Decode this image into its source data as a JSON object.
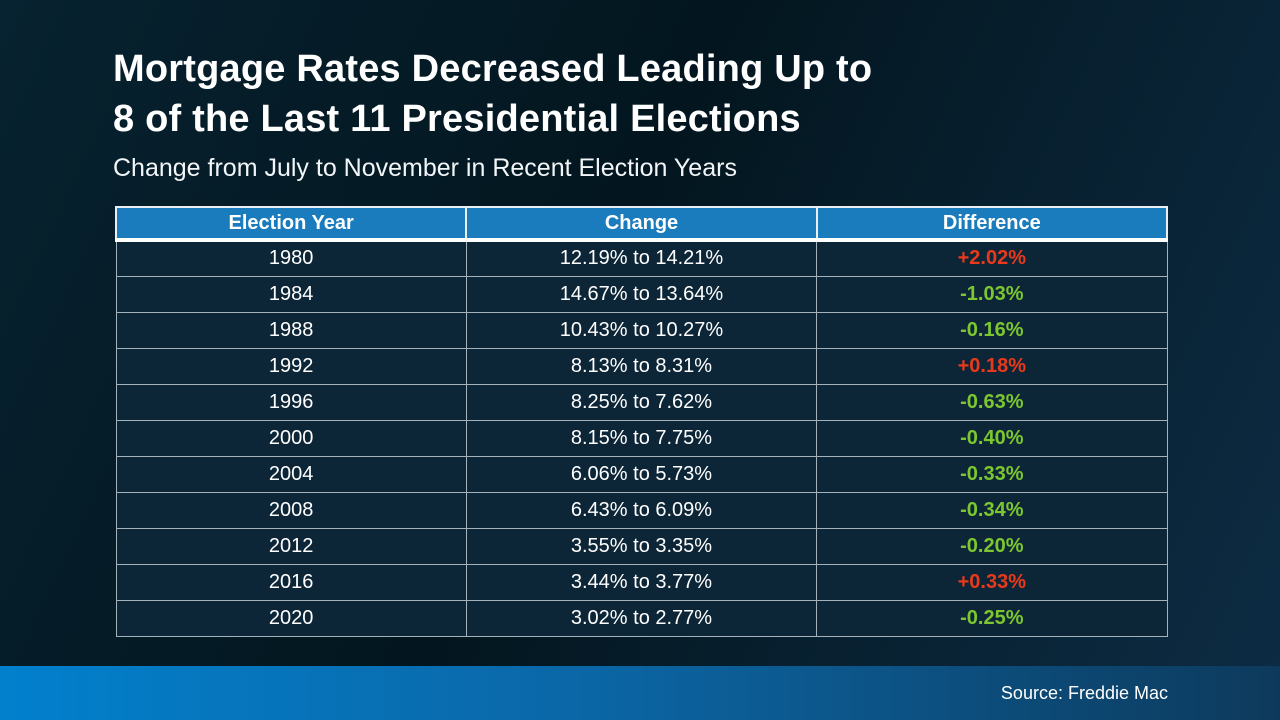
{
  "header": {
    "title_line1": "Mortgage Rates Decreased Leading Up to",
    "title_line2": "8 of the Last 11 Presidential Elections",
    "subtitle": "Change from July to November in Recent Election Years"
  },
  "table": {
    "columns": [
      "Election Year",
      "Change",
      "Difference"
    ],
    "rows": [
      {
        "year": "1980",
        "change": "12.19% to 14.21%",
        "difference": "+2.02%",
        "trend": "increase"
      },
      {
        "year": "1984",
        "change": "14.67% to 13.64%",
        "difference": "-1.03%",
        "trend": "decrease"
      },
      {
        "year": "1988",
        "change": "10.43% to 10.27%",
        "difference": "-0.16%",
        "trend": "decrease"
      },
      {
        "year": "1992",
        "change": "8.13% to 8.31%",
        "difference": "+0.18%",
        "trend": "increase"
      },
      {
        "year": "1996",
        "change": "8.25% to 7.62%",
        "difference": "-0.63%",
        "trend": "decrease"
      },
      {
        "year": "2000",
        "change": "8.15% to 7.75%",
        "difference": "-0.40%",
        "trend": "decrease"
      },
      {
        "year": "2004",
        "change": "6.06% to 5.73%",
        "difference": "-0.33%",
        "trend": "decrease"
      },
      {
        "year": "2008",
        "change": "6.43% to 6.09%",
        "difference": "-0.34%",
        "trend": "decrease"
      },
      {
        "year": "2012",
        "change": "3.55% to 3.35%",
        "difference": "-0.20%",
        "trend": "decrease"
      },
      {
        "year": "2016",
        "change": "3.44% to 3.77%",
        "difference": "+0.33%",
        "trend": "increase"
      },
      {
        "year": "2020",
        "change": "3.02% to 2.77%",
        "difference": "-0.25%",
        "trend": "decrease"
      }
    ]
  },
  "footer": {
    "source": "Source: Freddie Mac"
  },
  "colors": {
    "header_blue": "#1a7cbc",
    "increase_red": "#e8391c",
    "decrease_green": "#7cc62f",
    "bar_gradient_left": "#0280cd",
    "bar_gradient_right": "#0d3a5c"
  },
  "chart_data": {
    "type": "table",
    "title": "Mortgage Rates Decreased Leading Up to 8 of the Last 11 Presidential Elections",
    "subtitle": "Change from July to November in Recent Election Years",
    "columns": [
      "Election Year",
      "Change",
      "Difference"
    ],
    "rows": [
      [
        "1980",
        "12.19% to 14.21%",
        "+2.02%"
      ],
      [
        "1984",
        "14.67% to 13.64%",
        "-1.03%"
      ],
      [
        "1988",
        "10.43% to 10.27%",
        "-0.16%"
      ],
      [
        "1992",
        "8.13% to 8.31%",
        "+0.18%"
      ],
      [
        "1996",
        "8.25% to 7.62%",
        "-0.63%"
      ],
      [
        "2000",
        "8.15% to 7.75%",
        "-0.40%"
      ],
      [
        "2004",
        "6.06% to 5.73%",
        "-0.33%"
      ],
      [
        "2008",
        "6.43% to 6.09%",
        "-0.34%"
      ],
      [
        "2012",
        "3.55% to 3.35%",
        "-0.20%"
      ],
      [
        "2016",
        "3.44% to 3.77%",
        "+0.33%"
      ],
      [
        "2020",
        "3.02% to 2.77%",
        "-0.25%"
      ]
    ],
    "notes": "Positive differences (rate increases) shown in red; negative differences (rate decreases) shown in green.",
    "source": "Source: Freddie Mac"
  }
}
